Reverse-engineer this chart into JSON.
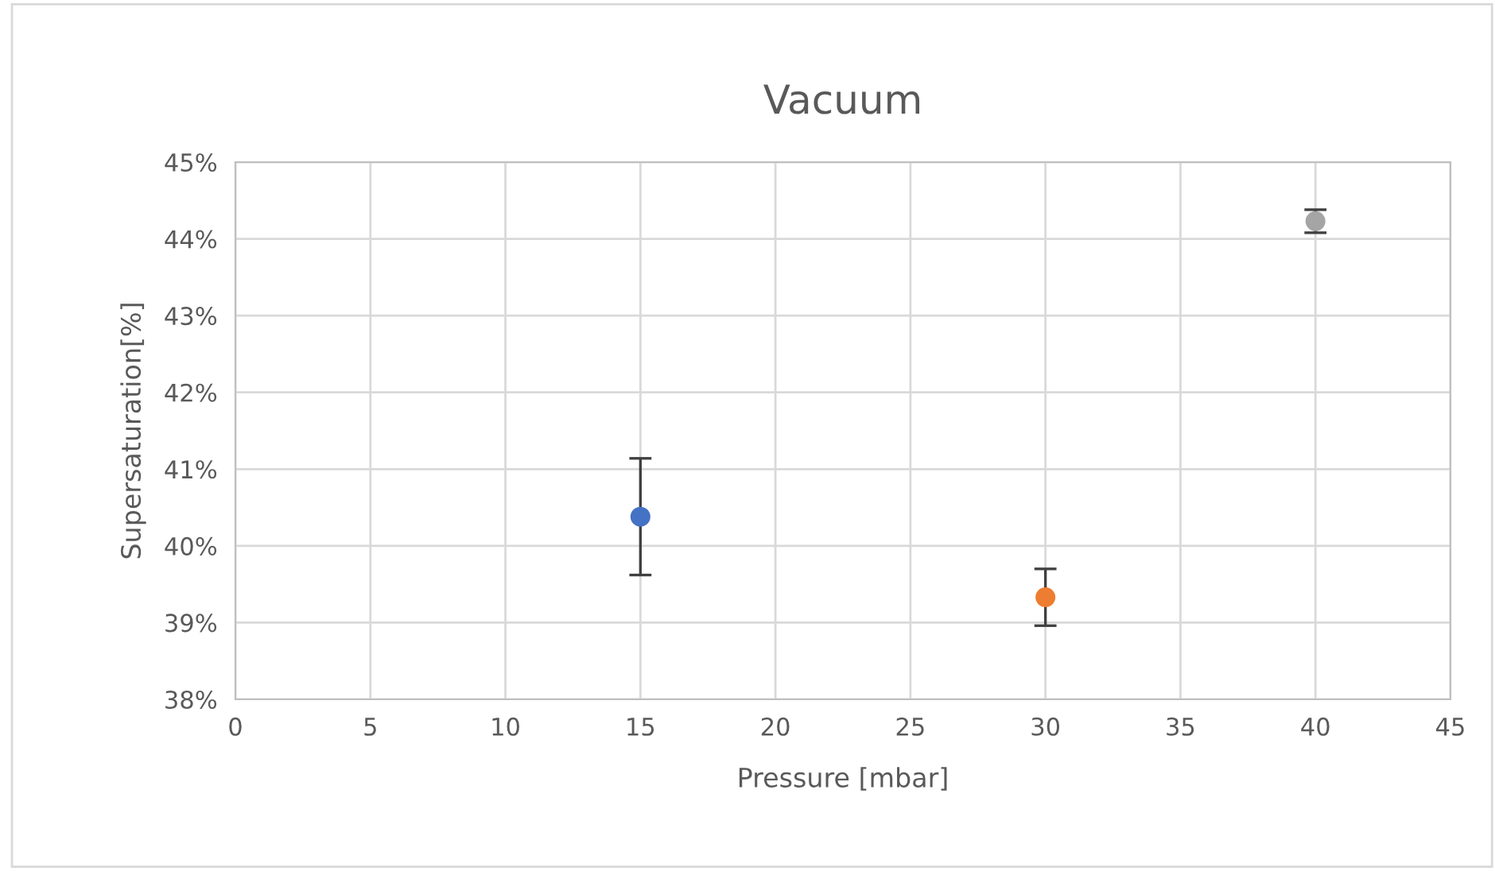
{
  "chart_data": {
    "type": "scatter",
    "title": "Vacuum",
    "xlabel": "Pressure [mbar]",
    "ylabel": "Supersaturation[%]",
    "xlim": [
      0,
      45
    ],
    "xticks": [
      0,
      5,
      10,
      15,
      20,
      25,
      30,
      35,
      40,
      45
    ],
    "ylim": [
      38,
      45
    ],
    "yticks": [
      {
        "value": 38,
        "label": "38%"
      },
      {
        "value": 39,
        "label": "39%"
      },
      {
        "value": 40,
        "label": "40%"
      },
      {
        "value": 41,
        "label": "41%"
      },
      {
        "value": 42,
        "label": "42%"
      },
      {
        "value": 43,
        "label": "43%"
      },
      {
        "value": 44,
        "label": "44%"
      },
      {
        "value": 45,
        "label": "45%"
      }
    ],
    "grid": true,
    "marker": "circle",
    "series": [
      {
        "color": "#4472c4",
        "x": [
          15
        ],
        "values": [
          40.38
        ],
        "errors": [
          0.76
        ]
      },
      {
        "color": "#ed7d31",
        "x": [
          30
        ],
        "values": [
          39.33
        ],
        "errors": [
          0.37
        ]
      },
      {
        "color": "#a5a5a5",
        "x": [
          40
        ],
        "values": [
          44.23
        ],
        "errors": [
          0.15
        ]
      }
    ]
  }
}
